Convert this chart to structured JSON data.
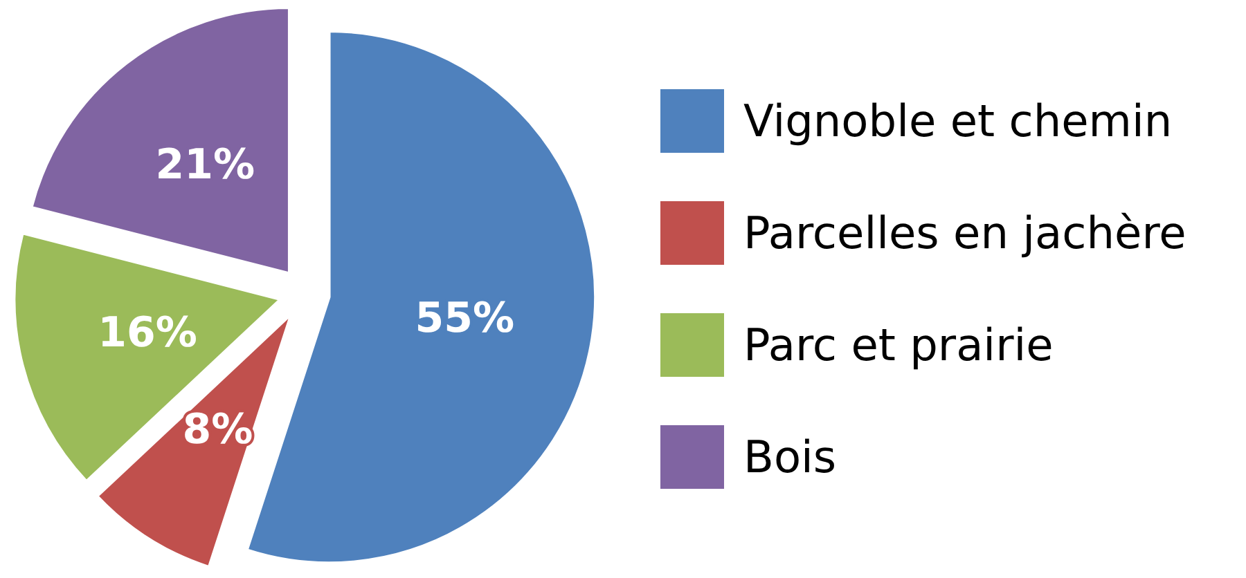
{
  "chart_data": {
    "type": "pie",
    "categories": [
      "Vignoble et chemin",
      "Parcelles en jachère",
      "Parc et prairie",
      "Bois"
    ],
    "values": [
      55,
      8,
      16,
      21
    ],
    "colors": [
      "#4f81bd",
      "#c0504d",
      "#9bbb59",
      "#8064a2"
    ],
    "value_labels": [
      "55%",
      "8%",
      "16%",
      "21%"
    ],
    "legend": "right"
  }
}
